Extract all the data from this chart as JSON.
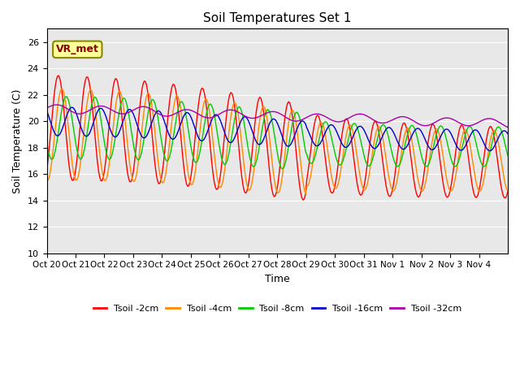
{
  "title": "Soil Temperatures Set 1",
  "xlabel": "Time",
  "ylabel": "Soil Temperature (C)",
  "ylim": [
    10,
    27
  ],
  "yticks": [
    10,
    12,
    14,
    16,
    18,
    20,
    22,
    24,
    26
  ],
  "x_labels": [
    "Oct 20",
    "Oct 21",
    "Oct 22",
    "Oct 23",
    "Oct 24",
    "Oct 25",
    "Oct 26",
    "Oct 27",
    "Oct 28",
    "Oct 29",
    "Oct 30",
    "Oct 31",
    "Nov 1",
    "Nov 2",
    "Nov 3",
    "Nov 4"
  ],
  "colors": {
    "Tsoil -2cm": "#ff0000",
    "Tsoil -4cm": "#ff8800",
    "Tsoil -8cm": "#00cc00",
    "Tsoil -16cm": "#0000cc",
    "Tsoil -32cm": "#aa00aa"
  },
  "bg_color": "#e8e8e8",
  "annotation_text": "VR_met",
  "annotation_box_color": "#ffff99",
  "annotation_border_color": "#888800",
  "annotation_text_color": "#880000"
}
